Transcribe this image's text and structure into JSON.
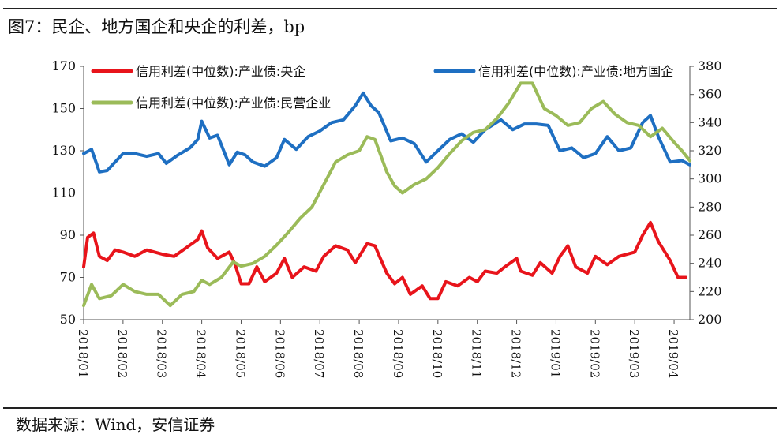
{
  "header": {
    "title": "图7：民企、地方国企和央企的利差，bp"
  },
  "footer": {
    "source": "数据来源：Wind，安信证券"
  },
  "chart_data": {
    "type": "line",
    "title": "图7：民企、地方国企和央企的利差，bp",
    "left_axis": {
      "ylim": [
        50,
        170
      ],
      "ticks": [
        50,
        70,
        90,
        110,
        130,
        150,
        170
      ]
    },
    "right_axis": {
      "ylim": [
        200,
        380
      ],
      "ticks": [
        200,
        220,
        240,
        260,
        280,
        300,
        320,
        340,
        360,
        380
      ]
    },
    "x_range": [
      0,
      15.4
    ],
    "x_tick_labels": [
      "2018/01",
      "2018/02",
      "2018/03",
      "2018/04",
      "2018/05",
      "2018/06",
      "2018/07",
      "2018/08",
      "2018/09",
      "2018/10",
      "2018/11",
      "2018/12",
      "2019/01",
      "2019/02",
      "2019/03",
      "2019/04"
    ],
    "x_tick_positions": [
      0,
      1,
      2,
      3,
      4,
      5,
      6,
      7,
      8,
      9,
      10,
      11,
      12,
      13,
      14,
      15
    ],
    "series": [
      {
        "name": "信用利差(中位数):产业债:央企",
        "axis": "left",
        "color": "#e8141b",
        "points": [
          [
            0,
            75
          ],
          [
            0.1,
            89
          ],
          [
            0.25,
            91
          ],
          [
            0.4,
            80
          ],
          [
            0.6,
            78
          ],
          [
            0.8,
            83
          ],
          [
            1,
            82
          ],
          [
            1.3,
            80
          ],
          [
            1.6,
            83
          ],
          [
            2,
            81
          ],
          [
            2.3,
            80
          ],
          [
            2.6,
            84
          ],
          [
            2.9,
            88
          ],
          [
            3.0,
            92
          ],
          [
            3.15,
            84
          ],
          [
            3.4,
            79
          ],
          [
            3.7,
            82
          ],
          [
            3.85,
            76
          ],
          [
            4,
            67
          ],
          [
            4.2,
            67
          ],
          [
            4.4,
            75
          ],
          [
            4.6,
            68
          ],
          [
            4.9,
            72
          ],
          [
            5.1,
            79
          ],
          [
            5.3,
            70
          ],
          [
            5.6,
            75
          ],
          [
            5.9,
            73
          ],
          [
            6.1,
            80
          ],
          [
            6.4,
            85
          ],
          [
            6.7,
            83
          ],
          [
            6.9,
            77
          ],
          [
            7.2,
            86
          ],
          [
            7.4,
            85
          ],
          [
            7.7,
            72
          ],
          [
            7.9,
            67
          ],
          [
            8.1,
            70
          ],
          [
            8.3,
            62
          ],
          [
            8.6,
            66
          ],
          [
            8.8,
            60
          ],
          [
            9.0,
            60
          ],
          [
            9.2,
            68
          ],
          [
            9.5,
            66
          ],
          [
            9.8,
            70
          ],
          [
            10.0,
            68
          ],
          [
            10.2,
            73
          ],
          [
            10.5,
            72
          ],
          [
            10.7,
            75
          ],
          [
            11.0,
            79
          ],
          [
            11.1,
            73
          ],
          [
            11.4,
            71
          ],
          [
            11.6,
            77
          ],
          [
            11.9,
            72
          ],
          [
            12.1,
            80
          ],
          [
            12.3,
            85
          ],
          [
            12.5,
            75
          ],
          [
            12.8,
            72
          ],
          [
            13.0,
            80
          ],
          [
            13.3,
            76
          ],
          [
            13.6,
            80
          ],
          [
            14.0,
            82
          ],
          [
            14.2,
            90
          ],
          [
            14.4,
            96
          ],
          [
            14.6,
            87
          ],
          [
            14.9,
            78
          ],
          [
            15.1,
            70
          ],
          [
            15.3,
            70
          ]
        ]
      },
      {
        "name": "信用利差(中位数):产业债:地方国企",
        "axis": "right",
        "color": "#1e6fc2",
        "points": [
          [
            0,
            318
          ],
          [
            0.2,
            321
          ],
          [
            0.4,
            305
          ],
          [
            0.6,
            306
          ],
          [
            0.8,
            312
          ],
          [
            1,
            318
          ],
          [
            1.3,
            318
          ],
          [
            1.6,
            316
          ],
          [
            1.9,
            318
          ],
          [
            2.1,
            311
          ],
          [
            2.4,
            317
          ],
          [
            2.7,
            322
          ],
          [
            2.9,
            328
          ],
          [
            3.0,
            341
          ],
          [
            3.2,
            329
          ],
          [
            3.4,
            331
          ],
          [
            3.7,
            310
          ],
          [
            3.9,
            319
          ],
          [
            4.1,
            317
          ],
          [
            4.3,
            312
          ],
          [
            4.6,
            309
          ],
          [
            4.9,
            315
          ],
          [
            5.1,
            328
          ],
          [
            5.4,
            321
          ],
          [
            5.7,
            330
          ],
          [
            6.0,
            334
          ],
          [
            6.3,
            340
          ],
          [
            6.6,
            342
          ],
          [
            6.9,
            352
          ],
          [
            7.1,
            361
          ],
          [
            7.3,
            352
          ],
          [
            7.5,
            347
          ],
          [
            7.8,
            327
          ],
          [
            8.1,
            329
          ],
          [
            8.4,
            325
          ],
          [
            8.7,
            312
          ],
          [
            9.0,
            320
          ],
          [
            9.3,
            328
          ],
          [
            9.6,
            332
          ],
          [
            9.9,
            326
          ],
          [
            10.2,
            335
          ],
          [
            10.6,
            342
          ],
          [
            10.9,
            335
          ],
          [
            11.2,
            339
          ],
          [
            11.5,
            339
          ],
          [
            11.8,
            338
          ],
          [
            12.1,
            320
          ],
          [
            12.4,
            322
          ],
          [
            12.7,
            315
          ],
          [
            13.0,
            318
          ],
          [
            13.3,
            330
          ],
          [
            13.6,
            320
          ],
          [
            13.9,
            322
          ],
          [
            14.2,
            340
          ],
          [
            14.4,
            345
          ],
          [
            14.6,
            330
          ],
          [
            14.9,
            312
          ],
          [
            15.2,
            313
          ],
          [
            15.4,
            310
          ]
        ]
      },
      {
        "name": "信用利差(中位数):产业债:民营企业",
        "axis": "right",
        "color": "#9bbb59",
        "points": [
          [
            0,
            210
          ],
          [
            0.2,
            225
          ],
          [
            0.4,
            215
          ],
          [
            0.7,
            217
          ],
          [
            1,
            225
          ],
          [
            1.3,
            220
          ],
          [
            1.6,
            218
          ],
          [
            1.9,
            218
          ],
          [
            2.2,
            210
          ],
          [
            2.5,
            218
          ],
          [
            2.8,
            220
          ],
          [
            3.0,
            228
          ],
          [
            3.2,
            225
          ],
          [
            3.5,
            230
          ],
          [
            3.8,
            241
          ],
          [
            4.0,
            238
          ],
          [
            4.3,
            240
          ],
          [
            4.6,
            245
          ],
          [
            4.9,
            253
          ],
          [
            5.2,
            262
          ],
          [
            5.5,
            272
          ],
          [
            5.8,
            280
          ],
          [
            6.1,
            296
          ],
          [
            6.4,
            312
          ],
          [
            6.7,
            317
          ],
          [
            7.0,
            320
          ],
          [
            7.2,
            330
          ],
          [
            7.4,
            328
          ],
          [
            7.7,
            305
          ],
          [
            7.9,
            295
          ],
          [
            8.1,
            290
          ],
          [
            8.4,
            296
          ],
          [
            8.7,
            300
          ],
          [
            9.0,
            308
          ],
          [
            9.3,
            318
          ],
          [
            9.6,
            327
          ],
          [
            9.9,
            333
          ],
          [
            10.2,
            335
          ],
          [
            10.5,
            343
          ],
          [
            10.8,
            354
          ],
          [
            11.1,
            368
          ],
          [
            11.4,
            368
          ],
          [
            11.7,
            350
          ],
          [
            12.0,
            345
          ],
          [
            12.3,
            338
          ],
          [
            12.6,
            340
          ],
          [
            12.9,
            350
          ],
          [
            13.2,
            355
          ],
          [
            13.5,
            346
          ],
          [
            13.8,
            340
          ],
          [
            14.1,
            338
          ],
          [
            14.4,
            330
          ],
          [
            14.7,
            336
          ],
          [
            15.0,
            326
          ],
          [
            15.2,
            320
          ],
          [
            15.4,
            313
          ]
        ]
      }
    ],
    "legend_position": "top"
  }
}
